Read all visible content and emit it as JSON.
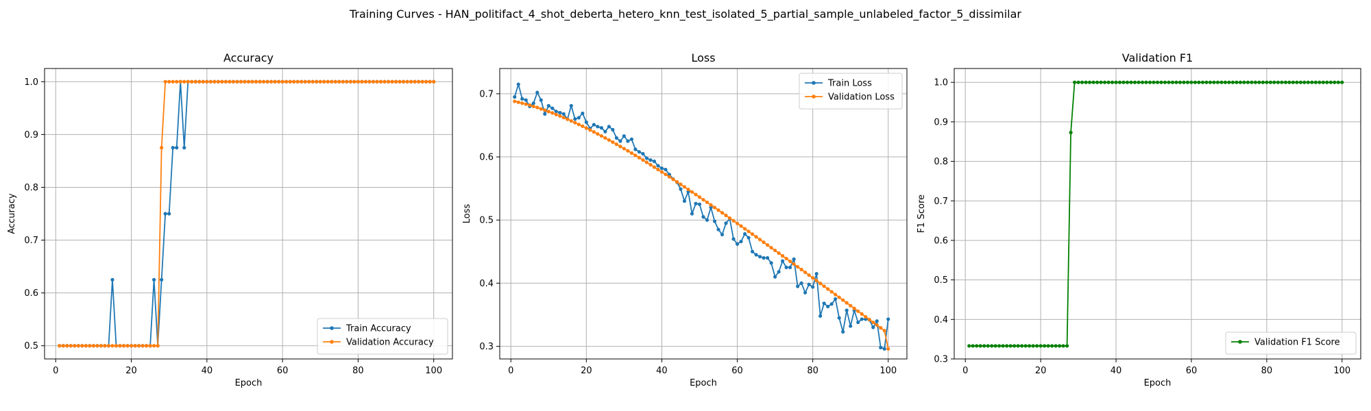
{
  "figure": {
    "suptitle": "Training Curves - HAN_politifact_4_shot_deberta_hetero_knn_test_isolated_5_partial_sample_unlabeled_factor_5_dissimilar"
  },
  "colors": {
    "blue": "#1f77b4",
    "orange": "#ff7f0e",
    "green": "#008000"
  },
  "chart_data": [
    {
      "type": "line",
      "title": "Accuracy",
      "xlabel": "Epoch",
      "ylabel": "Accuracy",
      "xlim": [
        -2.95,
        104.95
      ],
      "ylim": [
        0.475,
        1.025
      ],
      "xticks": [
        0,
        20,
        40,
        60,
        80,
        100
      ],
      "yticks": [
        0.5,
        0.6,
        0.7,
        0.8,
        0.9,
        1.0
      ],
      "ytick_labels": [
        "0.5",
        "0.6",
        "0.7",
        "0.8",
        "0.9",
        "1.0"
      ],
      "grid": true,
      "legend": "lower-right",
      "x": {
        "start": 1,
        "end": 100
      },
      "series": [
        {
          "name": "Train Accuracy",
          "color": "blue",
          "values": [
            0.5,
            0.5,
            0.5,
            0.5,
            0.5,
            0.5,
            0.5,
            0.5,
            0.5,
            0.5,
            0.5,
            0.5,
            0.5,
            0.5,
            0.625,
            0.5,
            0.5,
            0.5,
            0.5,
            0.5,
            0.5,
            0.5,
            0.5,
            0.5,
            0.5,
            0.625,
            0.5,
            0.625,
            0.75,
            0.75,
            0.875,
            0.875,
            1.0,
            0.875,
            1.0,
            1.0,
            1.0,
            1.0,
            1.0,
            1.0,
            1.0,
            1.0,
            1.0,
            1.0,
            1.0,
            1.0,
            1.0,
            1.0,
            1.0,
            1.0,
            1.0,
            1.0,
            1.0,
            1.0,
            1.0,
            1.0,
            1.0,
            1.0,
            1.0,
            1.0,
            1.0,
            1.0,
            1.0,
            1.0,
            1.0,
            1.0,
            1.0,
            1.0,
            1.0,
            1.0,
            1.0,
            1.0,
            1.0,
            1.0,
            1.0,
            1.0,
            1.0,
            1.0,
            1.0,
            1.0,
            1.0,
            1.0,
            1.0,
            1.0,
            1.0,
            1.0,
            1.0,
            1.0,
            1.0,
            1.0,
            1.0,
            1.0,
            1.0,
            1.0,
            1.0,
            1.0,
            1.0,
            1.0,
            1.0,
            1.0
          ]
        },
        {
          "name": "Validation Accuracy",
          "color": "orange",
          "values": [
            0.5,
            0.5,
            0.5,
            0.5,
            0.5,
            0.5,
            0.5,
            0.5,
            0.5,
            0.5,
            0.5,
            0.5,
            0.5,
            0.5,
            0.5,
            0.5,
            0.5,
            0.5,
            0.5,
            0.5,
            0.5,
            0.5,
            0.5,
            0.5,
            0.5,
            0.5,
            0.5,
            0.875,
            1.0,
            1.0,
            1.0,
            1.0,
            1.0,
            1.0,
            1.0,
            1.0,
            1.0,
            1.0,
            1.0,
            1.0,
            1.0,
            1.0,
            1.0,
            1.0,
            1.0,
            1.0,
            1.0,
            1.0,
            1.0,
            1.0,
            1.0,
            1.0,
            1.0,
            1.0,
            1.0,
            1.0,
            1.0,
            1.0,
            1.0,
            1.0,
            1.0,
            1.0,
            1.0,
            1.0,
            1.0,
            1.0,
            1.0,
            1.0,
            1.0,
            1.0,
            1.0,
            1.0,
            1.0,
            1.0,
            1.0,
            1.0,
            1.0,
            1.0,
            1.0,
            1.0,
            1.0,
            1.0,
            1.0,
            1.0,
            1.0,
            1.0,
            1.0,
            1.0,
            1.0,
            1.0,
            1.0,
            1.0,
            1.0,
            1.0,
            1.0,
            1.0,
            1.0,
            1.0,
            1.0,
            1.0
          ]
        }
      ]
    },
    {
      "type": "line",
      "title": "Loss",
      "xlabel": "Epoch",
      "ylabel": "Loss",
      "xlim": [
        -2.95,
        104.95
      ],
      "ylim": [
        0.28,
        0.74
      ],
      "xticks": [
        0,
        20,
        40,
        60,
        80,
        100
      ],
      "yticks": [
        0.3,
        0.4,
        0.5,
        0.6,
        0.7
      ],
      "ytick_labels": [
        "0.3",
        "0.4",
        "0.5",
        "0.6",
        "0.7"
      ],
      "grid": true,
      "legend": "top-right",
      "x": {
        "start": 1,
        "end": 100
      },
      "series": [
        {
          "name": "Train Loss",
          "color": "blue",
          "values": [
            0.695,
            0.715,
            0.692,
            0.69,
            0.68,
            0.685,
            0.702,
            0.69,
            0.668,
            0.681,
            0.677,
            0.672,
            0.67,
            0.668,
            0.66,
            0.681,
            0.66,
            0.662,
            0.669,
            0.655,
            0.645,
            0.651,
            0.648,
            0.646,
            0.64,
            0.648,
            0.643,
            0.63,
            0.625,
            0.633,
            0.625,
            0.628,
            0.612,
            0.608,
            0.605,
            0.598,
            0.595,
            0.593,
            0.586,
            0.582,
            0.58,
            0.572,
            0.565,
            0.56,
            0.549,
            0.53,
            0.545,
            0.51,
            0.526,
            0.525,
            0.505,
            0.5,
            0.52,
            0.498,
            0.485,
            0.477,
            0.495,
            0.502,
            0.47,
            0.462,
            0.466,
            0.478,
            0.472,
            0.45,
            0.445,
            0.442,
            0.44,
            0.44,
            0.432,
            0.41,
            0.418,
            0.435,
            0.425,
            0.425,
            0.438,
            0.395,
            0.4,
            0.385,
            0.398,
            0.394,
            0.415,
            0.348,
            0.368,
            0.363,
            0.367,
            0.375,
            0.345,
            0.323,
            0.357,
            0.332,
            0.357,
            0.338,
            0.343,
            0.343,
            0.342,
            0.33,
            0.34,
            0.298,
            0.296,
            0.343
          ]
        },
        {
          "name": "Validation Loss",
          "color": "orange",
          "values": [
            0.688,
            0.6865,
            0.685,
            0.6835,
            0.682,
            0.68,
            0.6782,
            0.676,
            0.674,
            0.6718,
            0.6696,
            0.6672,
            0.6648,
            0.6622,
            0.6596,
            0.657,
            0.6542,
            0.6514,
            0.6486,
            0.6456,
            0.6426,
            0.6395,
            0.6364,
            0.6332,
            0.63,
            0.6267,
            0.6234,
            0.62,
            0.6166,
            0.6131,
            0.6096,
            0.606,
            0.6024,
            0.5988,
            0.5951,
            0.5914,
            0.5876,
            0.5838,
            0.58,
            0.5762,
            0.5723,
            0.5684,
            0.5645,
            0.5605,
            0.5565,
            0.5525,
            0.5485,
            0.5445,
            0.5404,
            0.5363,
            0.5322,
            0.5281,
            0.524,
            0.5199,
            0.5157,
            0.5115,
            0.5073,
            0.5031,
            0.4989,
            0.4947,
            0.4905,
            0.4862,
            0.482,
            0.4777,
            0.4734,
            0.4691,
            0.4648,
            0.4605,
            0.4562,
            0.4519,
            0.4476,
            0.4433,
            0.439,
            0.4346,
            0.4303,
            0.426,
            0.4216,
            0.4172,
            0.4128,
            0.4084,
            0.404,
            0.3996,
            0.3952,
            0.3908,
            0.3864,
            0.382,
            0.3776,
            0.3732,
            0.3688,
            0.3644,
            0.36,
            0.3556,
            0.3512,
            0.3468,
            0.3424,
            0.338,
            0.3336,
            0.3292,
            0.3248,
            0.296
          ]
        }
      ]
    },
    {
      "type": "line",
      "title": "Validation F1",
      "xlabel": "Epoch",
      "ylabel": "F1 Score",
      "xlim": [
        -2.95,
        104.95
      ],
      "ylim": [
        0.3,
        1.035
      ],
      "xticks": [
        0,
        20,
        40,
        60,
        80,
        100
      ],
      "yticks": [
        0.3,
        0.4,
        0.5,
        0.6,
        0.7,
        0.8,
        0.9,
        1.0
      ],
      "ytick_labels": [
        "0.3",
        "0.4",
        "0.5",
        "0.6",
        "0.7",
        "0.8",
        "0.9",
        "1.0"
      ],
      "grid": true,
      "legend": "lower-right",
      "x": {
        "start": 1,
        "end": 100
      },
      "series": [
        {
          "name": "Validation F1 Score",
          "color": "green",
          "values": [
            0.333,
            0.333,
            0.333,
            0.333,
            0.333,
            0.333,
            0.333,
            0.333,
            0.333,
            0.333,
            0.333,
            0.333,
            0.333,
            0.333,
            0.333,
            0.333,
            0.333,
            0.333,
            0.333,
            0.333,
            0.333,
            0.333,
            0.333,
            0.333,
            0.333,
            0.333,
            0.333,
            0.873,
            1.0,
            1.0,
            1.0,
            1.0,
            1.0,
            1.0,
            1.0,
            1.0,
            1.0,
            1.0,
            1.0,
            1.0,
            1.0,
            1.0,
            1.0,
            1.0,
            1.0,
            1.0,
            1.0,
            1.0,
            1.0,
            1.0,
            1.0,
            1.0,
            1.0,
            1.0,
            1.0,
            1.0,
            1.0,
            1.0,
            1.0,
            1.0,
            1.0,
            1.0,
            1.0,
            1.0,
            1.0,
            1.0,
            1.0,
            1.0,
            1.0,
            1.0,
            1.0,
            1.0,
            1.0,
            1.0,
            1.0,
            1.0,
            1.0,
            1.0,
            1.0,
            1.0,
            1.0,
            1.0,
            1.0,
            1.0,
            1.0,
            1.0,
            1.0,
            1.0,
            1.0,
            1.0,
            1.0,
            1.0,
            1.0,
            1.0,
            1.0,
            1.0,
            1.0,
            1.0,
            1.0,
            1.0
          ]
        }
      ]
    }
  ]
}
